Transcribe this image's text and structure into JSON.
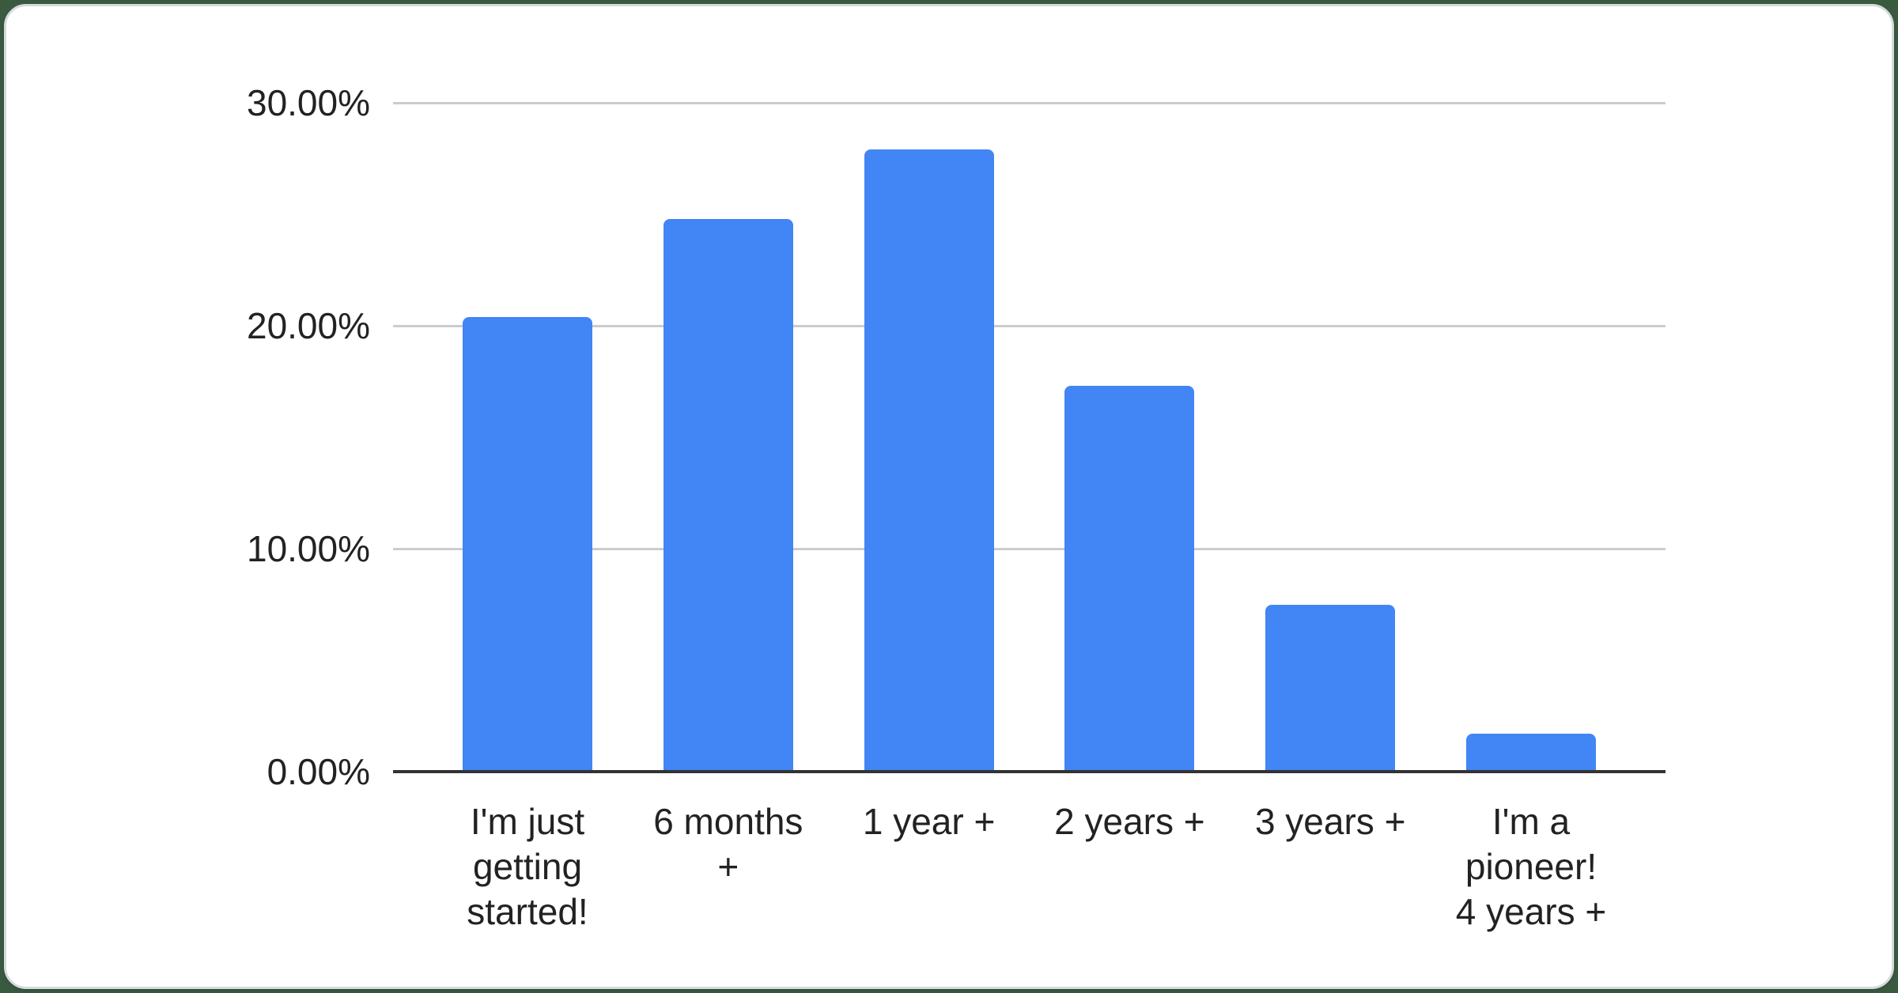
{
  "page": {
    "background_color": "#3a5a40",
    "card_color": "#ffffff",
    "card_border_color": "#d5dadd"
  },
  "chart_data": {
    "type": "bar",
    "title": "",
    "xlabel": "",
    "ylabel": "",
    "categories": [
      "I'm just\ngetting\nstarted!",
      "6 months\n+",
      "1 year +",
      "2 years +",
      "3 years +",
      "I'm a\npioneer!\n4 years +"
    ],
    "values": [
      20.4,
      24.8,
      27.9,
      17.3,
      7.5,
      1.7
    ],
    "unit": "%",
    "ylim": [
      0,
      30
    ],
    "yticks": [
      {
        "value": 30,
        "label": "30.00%"
      },
      {
        "value": 20,
        "label": "20.00%"
      },
      {
        "value": 10,
        "label": "10.00%"
      },
      {
        "value": 0,
        "label": "0.00%"
      }
    ],
    "grid": true,
    "legend_position": "none",
    "bar_color": "#4285F4",
    "gridline_color": "#cccccc",
    "axis_line_color": "#333333",
    "label_color": "#222222"
  }
}
